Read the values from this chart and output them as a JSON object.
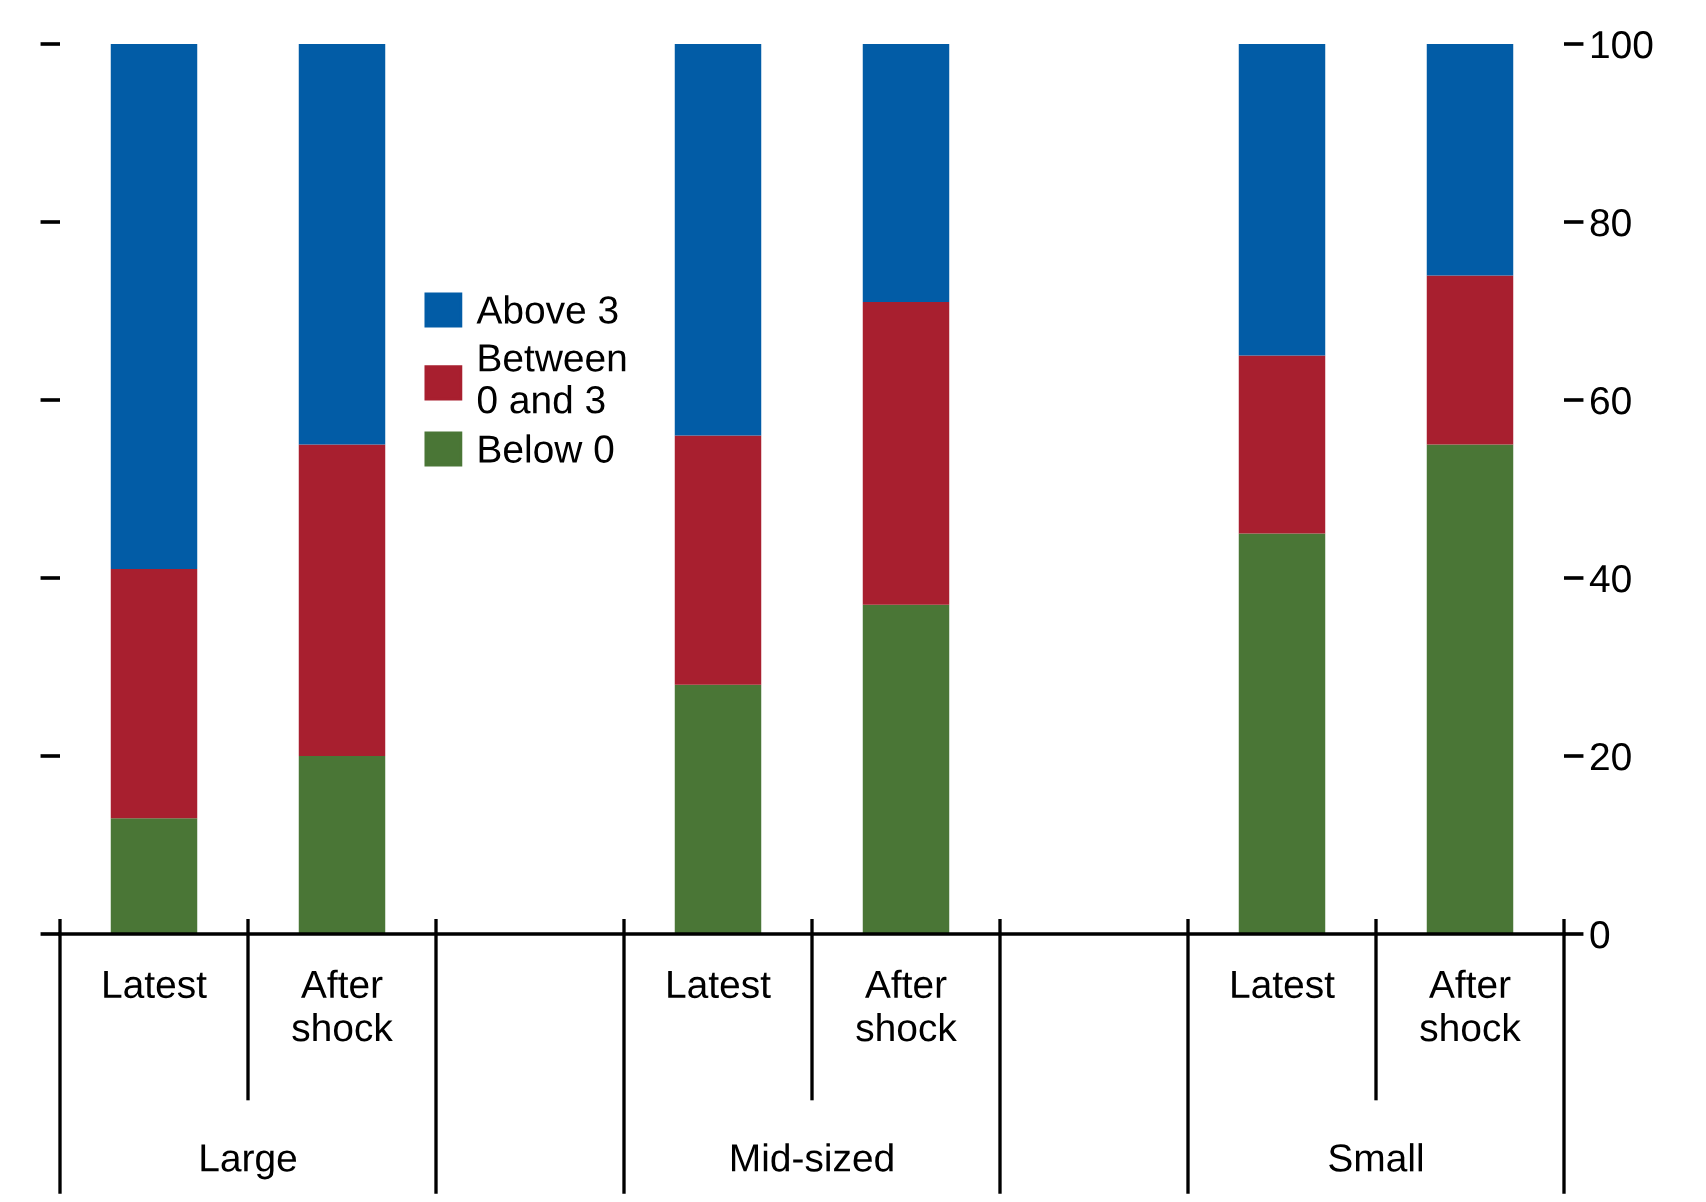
{
  "chart_data": {
    "type": "bar",
    "stacked": true,
    "categories": [
      "Latest",
      "After\nshock",
      null,
      "Latest",
      "After\nshock",
      null,
      "Latest",
      "After\nshock"
    ],
    "series": [
      {
        "name": "Below 0",
        "color": "#4a7636",
        "values": [
          13,
          20,
          null,
          28,
          37,
          null,
          45,
          55
        ]
      },
      {
        "name": "Between\n0 and 3",
        "color": "#a81f2f",
        "values": [
          28,
          35,
          null,
          28,
          34,
          null,
          20,
          19
        ]
      },
      {
        "name": "Above 3",
        "color": "#025ca6",
        "values": [
          59,
          45,
          null,
          44,
          29,
          null,
          35,
          26
        ]
      }
    ],
    "annotations": [
      "Large",
      "Mid-sized",
      "Small"
    ],
    "ylim": [
      0,
      100
    ],
    "yticks": [
      0,
      20,
      40,
      60,
      80,
      100
    ],
    "legend": "left",
    "grid": false
  }
}
